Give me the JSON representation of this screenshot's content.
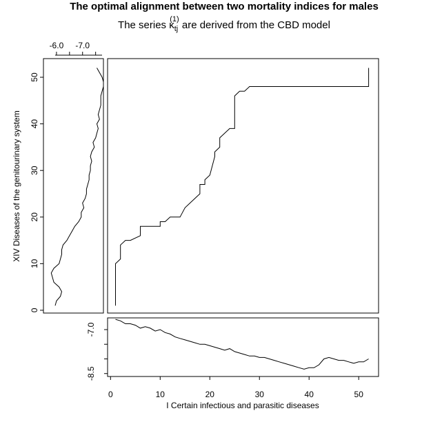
{
  "chart_data": {
    "type": "line",
    "title": "The optimal alignment between two mortality indices for males",
    "subtitle": {
      "before": "The series ",
      "symbol": "κ",
      "subscript": "tj",
      "superscript": "(1)",
      "after": " are derived from the CBD model"
    },
    "xlabel": "I Certain infectious and parasitic diseases",
    "ylabel": "XIV Diseases of the genitourinary system",
    "main": {
      "xlim": [
        -0.6,
        54.0
      ],
      "ylim": [
        -0.6,
        54.0
      ],
      "xticks": [
        0,
        10,
        20,
        30,
        40,
        50
      ],
      "yticks": [
        0,
        10,
        20,
        30,
        40,
        50
      ],
      "x": [
        1,
        1,
        2,
        2,
        3,
        3,
        4,
        6,
        6,
        7,
        10,
        10,
        11,
        12,
        13,
        14,
        15,
        16,
        17,
        18,
        18,
        19,
        19,
        20,
        20,
        21,
        21,
        22,
        22,
        23,
        23,
        24,
        25,
        25,
        26,
        27,
        28,
        52,
        52
      ],
      "y": [
        1,
        10,
        11,
        14,
        15,
        15,
        15,
        16,
        18,
        18,
        18,
        19,
        19,
        20,
        20,
        20,
        22,
        23,
        24,
        25,
        27,
        27,
        28,
        29,
        29,
        33,
        34,
        35,
        37,
        38,
        38,
        39,
        39,
        46,
        47,
        47,
        48,
        48,
        52
      ]
    },
    "left_series": {
      "xlim": [
        -5.5,
        -7.8
      ],
      "xticks": [
        -6.0,
        -7.0
      ],
      "xtick_labels": [
        "-6.0",
        "-7.0"
      ],
      "y": [
        1,
        2,
        3,
        4,
        5,
        6,
        7,
        8,
        9,
        10,
        11,
        12,
        13,
        14,
        15,
        16,
        17,
        18,
        19,
        20,
        21,
        22,
        23,
        24,
        25,
        26,
        27,
        28,
        29,
        30,
        31,
        32,
        33,
        34,
        35,
        36,
        37,
        38,
        39,
        40,
        41,
        42,
        43,
        44,
        45,
        46,
        47,
        48,
        49,
        50,
        51,
        52
      ],
      "values": [
        -5.95,
        -6.0,
        -6.15,
        -6.2,
        -6.1,
        -5.9,
        -5.85,
        -5.8,
        -5.9,
        -6.1,
        -6.15,
        -6.2,
        -6.2,
        -6.25,
        -6.4,
        -6.5,
        -6.6,
        -6.7,
        -6.85,
        -6.95,
        -6.95,
        -7.05,
        -7.0,
        -7.1,
        -7.15,
        -7.15,
        -7.2,
        -7.25,
        -7.25,
        -7.3,
        -7.3,
        -7.35,
        -7.3,
        -7.35,
        -7.45,
        -7.4,
        -7.5,
        -7.55,
        -7.6,
        -7.55,
        -7.65,
        -7.6,
        -7.65,
        -7.7,
        -7.7,
        -7.7,
        -7.75,
        -7.8,
        -7.8,
        -7.75,
        -7.65,
        -7.55
      ]
    },
    "bottom_series": {
      "ylim": [
        -8.6,
        -6.6
      ],
      "yticks": [
        -7.0,
        -8.5
      ],
      "ytick_labels": [
        "-7.0",
        "-8.5"
      ],
      "x": [
        1,
        2,
        3,
        4,
        5,
        6,
        7,
        8,
        9,
        10,
        11,
        12,
        13,
        14,
        15,
        16,
        17,
        18,
        19,
        20,
        21,
        22,
        23,
        24,
        25,
        26,
        27,
        28,
        29,
        30,
        31,
        32,
        33,
        34,
        35,
        36,
        37,
        38,
        39,
        40,
        41,
        42,
        43,
        44,
        45,
        46,
        47,
        48,
        49,
        50,
        51,
        52
      ],
      "values": [
        -6.65,
        -6.7,
        -6.8,
        -6.8,
        -6.85,
        -6.95,
        -6.9,
        -6.95,
        -7.05,
        -7.0,
        -7.1,
        -7.15,
        -7.25,
        -7.3,
        -7.35,
        -7.4,
        -7.45,
        -7.5,
        -7.5,
        -7.55,
        -7.6,
        -7.65,
        -7.7,
        -7.65,
        -7.75,
        -7.8,
        -7.85,
        -7.9,
        -7.9,
        -7.95,
        -7.95,
        -8.0,
        -8.05,
        -8.1,
        -8.15,
        -8.2,
        -8.25,
        -8.3,
        -8.35,
        -8.3,
        -8.3,
        -8.2,
        -8.0,
        -7.95,
        -8.0,
        -8.05,
        -8.05,
        -8.1,
        -8.15,
        -8.1,
        -8.1,
        -8.0
      ]
    }
  }
}
